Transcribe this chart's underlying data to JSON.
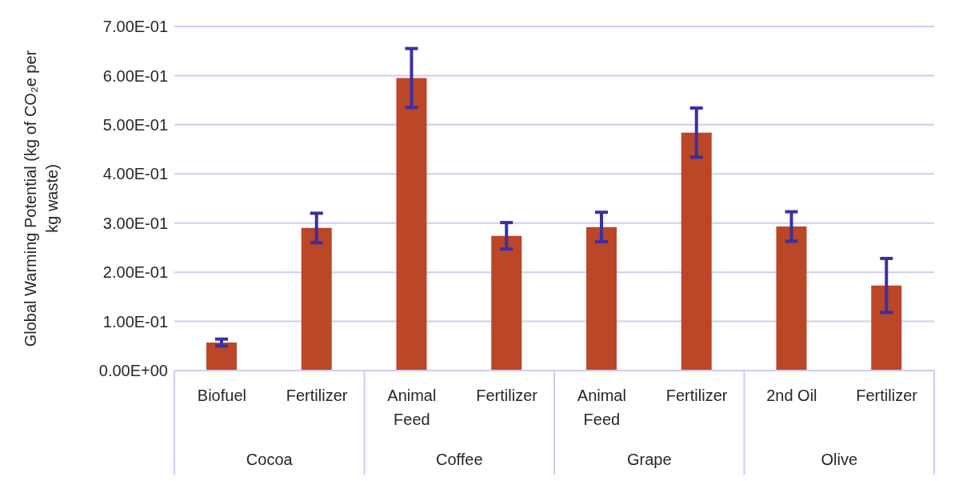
{
  "chart_data": {
    "type": "bar",
    "ylabel": "Global Warming Potential (kg of CO₂e per kg waste)",
    "categories": [
      "Biofuel",
      "Fertilizer",
      "Animal Feed",
      "Fertilizer",
      "Animal Feed",
      "Fertilizer",
      "2nd Oil",
      "Fertilizer"
    ],
    "values": [
      0.057,
      0.29,
      0.595,
      0.274,
      0.292,
      0.484,
      0.293,
      0.173
    ],
    "errors": [
      0.007,
      0.03,
      0.06,
      0.027,
      0.03,
      0.05,
      0.03,
      0.055
    ],
    "color": "#bc4628",
    "ylim": [
      0,
      0.7
    ],
    "yticks": [
      {
        "value": 0,
        "label": "0.00E+00"
      },
      {
        "value": 0.1,
        "label": "1.00E-01"
      },
      {
        "value": 0.2,
        "label": "2.00E-01"
      },
      {
        "value": 0.3,
        "label": "3.00E-01"
      },
      {
        "value": 0.4,
        "label": "4.00E-01"
      },
      {
        "value": 0.5,
        "label": "5.00E-01"
      },
      {
        "value": 0.6,
        "label": "6.00E-01"
      },
      {
        "value": 0.7,
        "label": "7.00E-01"
      }
    ],
    "grid": "y",
    "annotations": [
      "Cocoa",
      "Coffee",
      "Grape",
      "Olive"
    ]
  }
}
